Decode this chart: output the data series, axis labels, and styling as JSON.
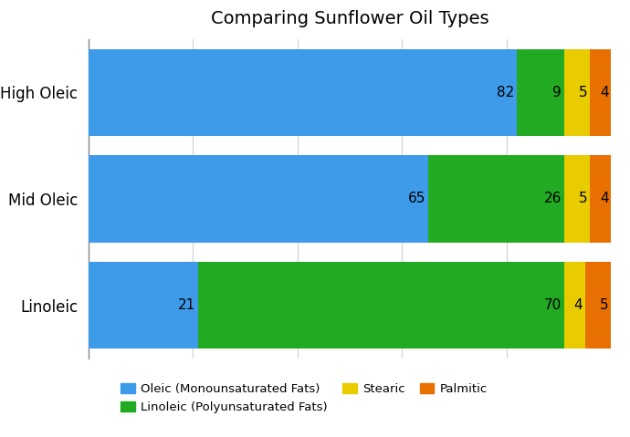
{
  "title": "Comparing Sunflower Oil Types",
  "categories": [
    "Linoleic",
    "Mid Oleic",
    "High Oleic"
  ],
  "series_keys": [
    "Oleic (Monounsaturated Fats)",
    "Linoleic (Polyunsaturated Fats)",
    "Stearic",
    "Palmitic"
  ],
  "series": {
    "Oleic (Monounsaturated Fats)": [
      21,
      65,
      82
    ],
    "Linoleic (Polyunsaturated Fats)": [
      70,
      26,
      9
    ],
    "Stearic": [
      4,
      5,
      5
    ],
    "Palmitic": [
      5,
      4,
      4
    ]
  },
  "colors": {
    "Oleic (Monounsaturated Fats)": "#3d9be9",
    "Linoleic (Polyunsaturated Fats)": "#22aa22",
    "Stearic": "#e8cc00",
    "Palmitic": "#e87000"
  },
  "figsize": [
    6.9,
    4.79
  ],
  "dpi": 100,
  "title_fontsize": 14,
  "label_fontsize": 11,
  "ytick_fontsize": 12,
  "background_color": "#ffffff",
  "bar_height": 0.82,
  "xlim": [
    0,
    100
  ],
  "grid_color": "#d0d0d0",
  "spine_color": "#888888",
  "legend_fontsize": 9.5
}
